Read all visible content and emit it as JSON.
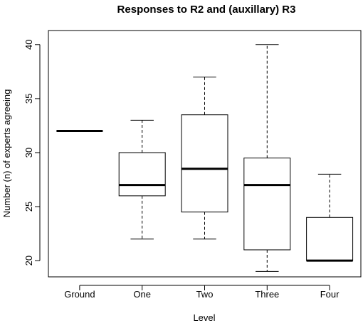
{
  "chart_data": {
    "type": "boxplot",
    "title": "Responses to R2 and (auxillary) R3",
    "xlabel": "Level",
    "ylabel": "Number (n) of experts agreeing",
    "ylim": [
      18.5,
      41.3
    ],
    "yticks": [
      20,
      25,
      30,
      35,
      40
    ],
    "categories": [
      "Ground",
      "One",
      "Two",
      "Three",
      "Four"
    ],
    "boxes": [
      {
        "category": "Ground",
        "min": 32,
        "q1": 32,
        "median": 32,
        "q3": 32,
        "max": 32
      },
      {
        "category": "One",
        "min": 22,
        "q1": 26,
        "median": 27,
        "q3": 30,
        "max": 33
      },
      {
        "category": "Two",
        "min": 22,
        "q1": 24.5,
        "median": 28.5,
        "q3": 33.5,
        "max": 37
      },
      {
        "category": "Three",
        "min": 19,
        "q1": 21,
        "median": 27,
        "q3": 29.5,
        "max": 40
      },
      {
        "category": "Four",
        "min": 20,
        "q1": 20,
        "median": 20,
        "q3": 24,
        "max": 28
      }
    ]
  }
}
